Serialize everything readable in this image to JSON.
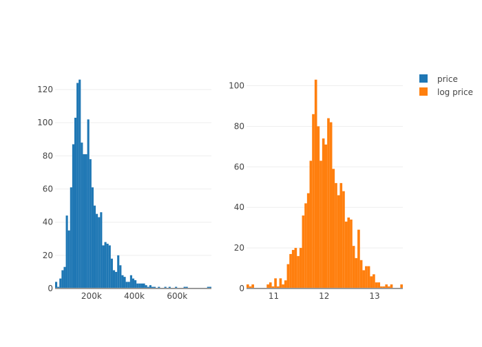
{
  "chart_data": [
    {
      "type": "bar",
      "subtype": "histogram",
      "name": "price",
      "color": "#1f77b4",
      "bin_start": 30000,
      "bin_size": 10000,
      "values": [
        4,
        1,
        6,
        11,
        13,
        44,
        35,
        61,
        87,
        103,
        124,
        126,
        88,
        81,
        81,
        102,
        78,
        61,
        50,
        45,
        43,
        46,
        26,
        28,
        27,
        26,
        18,
        11,
        10,
        20,
        14,
        8,
        7,
        4,
        4,
        8,
        6,
        5,
        3,
        3,
        3,
        3,
        2,
        1,
        2,
        1,
        1,
        0,
        1,
        0,
        0,
        1,
        0,
        1,
        0,
        0,
        1,
        0,
        0,
        0,
        1,
        1,
        0,
        0,
        0,
        0,
        0,
        0,
        0,
        0,
        0,
        1,
        1
      ],
      "xlim": [
        30000,
        760000
      ],
      "ylim": [
        0,
        130
      ],
      "xticks": [
        {
          "value": 200000,
          "label": "200k"
        },
        {
          "value": 400000,
          "label": "400k"
        },
        {
          "value": 600000,
          "label": "600k"
        }
      ],
      "yticks": [
        {
          "value": 0,
          "label": "0"
        },
        {
          "value": 20,
          "label": "20"
        },
        {
          "value": 40,
          "label": "40"
        },
        {
          "value": 60,
          "label": "60"
        },
        {
          "value": 80,
          "label": "80"
        },
        {
          "value": 100,
          "label": "100"
        },
        {
          "value": 120,
          "label": "120"
        }
      ],
      "grid": true
    },
    {
      "type": "bar",
      "subtype": "histogram",
      "name": "log price",
      "color": "#ff7f0e",
      "bin_start": 10.46,
      "bin_size": 0.05,
      "values": [
        2,
        1,
        2,
        0,
        0,
        0,
        0,
        0,
        2,
        3,
        1,
        5,
        1,
        5,
        2,
        4,
        12,
        17,
        19,
        20,
        16,
        20,
        36,
        42,
        47,
        63,
        86,
        103,
        80,
        63,
        74,
        71,
        84,
        82,
        59,
        52,
        46,
        52,
        48,
        33,
        35,
        34,
        21,
        15,
        29,
        14,
        9,
        11,
        11,
        6,
        7,
        3,
        3,
        1,
        1,
        2,
        1,
        2,
        0,
        0,
        0,
        2
      ],
      "xlim": [
        10.46,
        13.56
      ],
      "ylim": [
        0,
        108
      ],
      "xticks": [
        {
          "value": 11,
          "label": "11"
        },
        {
          "value": 12,
          "label": "12"
        },
        {
          "value": 13,
          "label": "13"
        }
      ],
      "yticks": [
        {
          "value": 0,
          "label": "0"
        },
        {
          "value": 20,
          "label": "20"
        },
        {
          "value": 40,
          "label": "40"
        },
        {
          "value": 60,
          "label": "60"
        },
        {
          "value": 80,
          "label": "80"
        },
        {
          "value": 100,
          "label": "100"
        }
      ],
      "grid": true
    }
  ],
  "legend": {
    "placement": "top-right",
    "items": [
      {
        "label": "price",
        "color": "#1f77b4"
      },
      {
        "label": "log price",
        "color": "#ff7f0e"
      }
    ]
  }
}
